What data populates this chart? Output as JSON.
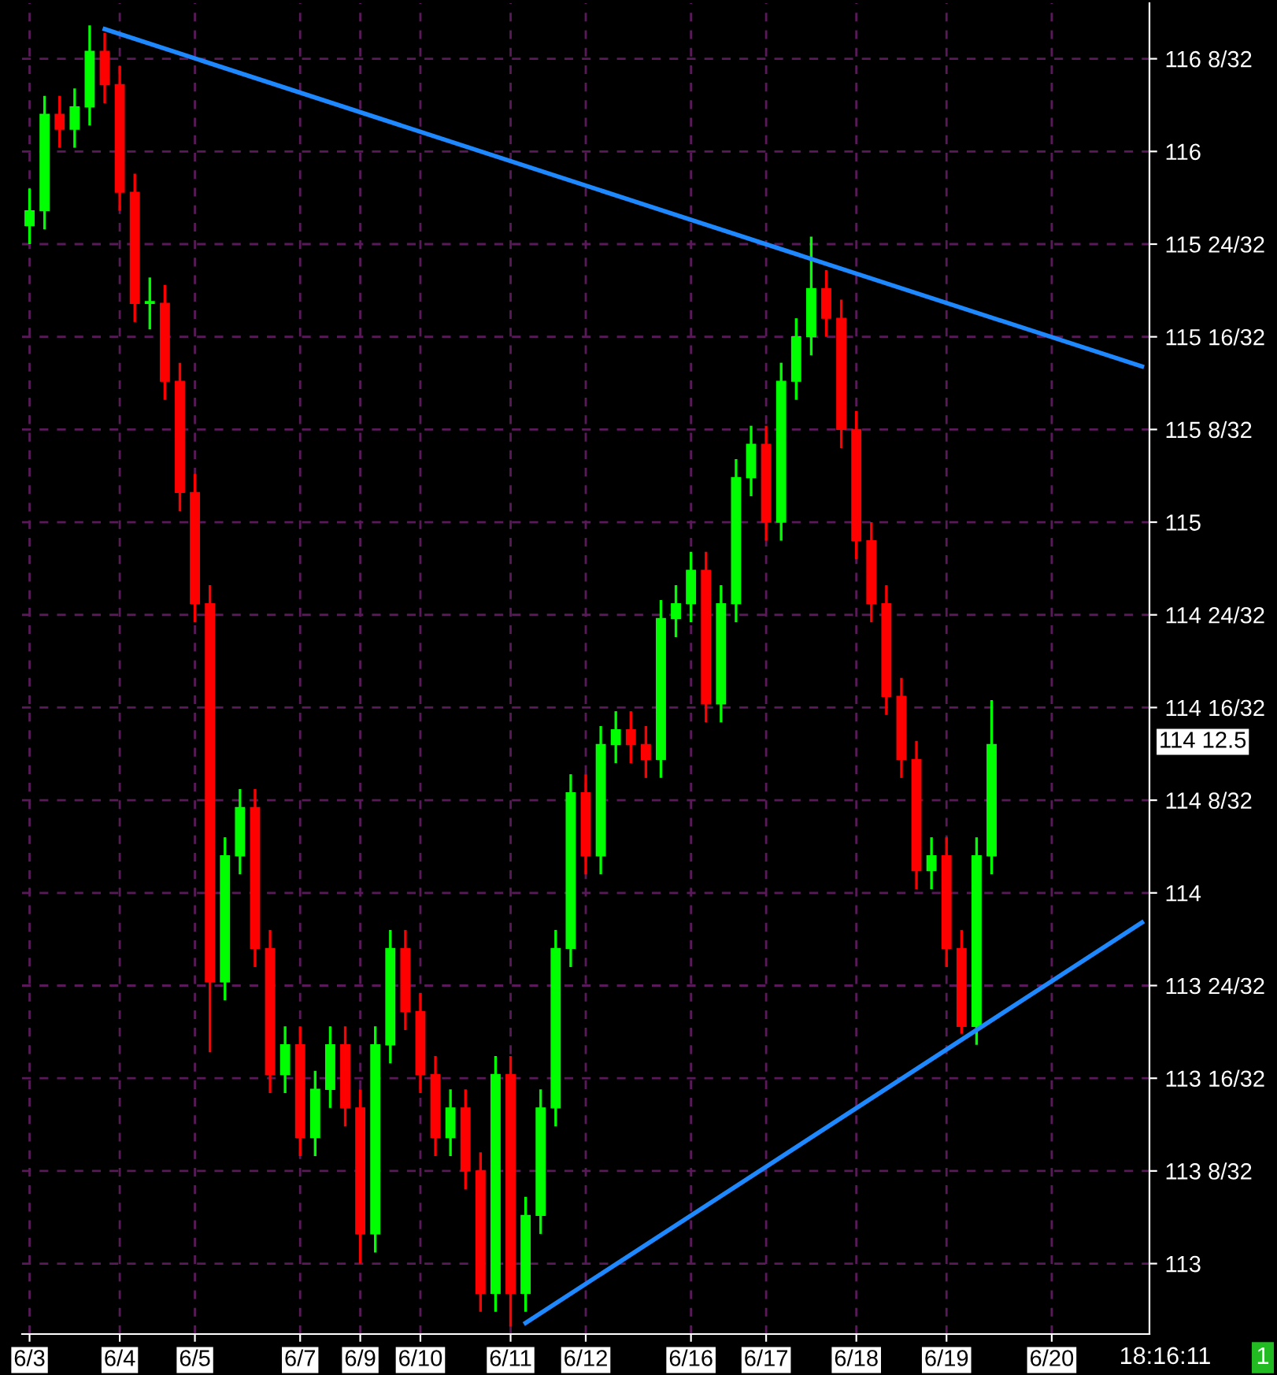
{
  "chart_data": {
    "type": "candlestick",
    "categories": [
      "6/3",
      null,
      null,
      null,
      null,
      null,
      "6/4",
      null,
      null,
      null,
      null,
      "6/5",
      null,
      null,
      null,
      null,
      null,
      null,
      "6/7",
      null,
      null,
      null,
      "6/9",
      null,
      null,
      null,
      "6/10",
      null,
      null,
      null,
      null,
      null,
      "6/11",
      null,
      null,
      null,
      null,
      "6/12",
      null,
      null,
      null,
      null,
      null,
      null,
      "6/16",
      null,
      null,
      null,
      null,
      "6/17",
      null,
      null,
      null,
      null,
      null,
      "6/18",
      null,
      null,
      null,
      null,
      null,
      "6/19",
      null,
      null,
      null,
      null,
      null,
      null,
      "6/20",
      null,
      null,
      null,
      null,
      null,
      null
    ],
    "ohlc": [
      [
        115.8,
        115.9,
        115.75,
        115.84
      ],
      [
        115.84,
        116.15,
        115.79,
        116.1
      ],
      [
        116.1,
        116.15,
        116.01,
        116.06
      ],
      [
        116.06,
        116.17,
        116.01,
        116.12
      ],
      [
        116.12,
        116.34,
        116.07,
        116.27
      ],
      [
        116.27,
        116.32,
        116.13,
        116.18
      ],
      [
        116.18,
        116.23,
        115.84,
        115.89
      ],
      [
        115.89,
        115.94,
        115.54,
        115.59
      ],
      [
        115.59,
        115.66,
        115.52,
        115.59
      ],
      [
        115.59,
        115.64,
        115.33,
        115.38
      ],
      [
        115.38,
        115.43,
        115.03,
        115.08
      ],
      [
        115.08,
        115.13,
        114.73,
        114.78
      ],
      [
        114.78,
        114.83,
        113.57,
        113.76
      ],
      [
        113.76,
        114.15,
        113.71,
        114.1
      ],
      [
        114.1,
        114.28,
        114.05,
        114.23
      ],
      [
        114.23,
        114.28,
        113.8,
        113.85
      ],
      [
        113.85,
        113.9,
        113.46,
        113.51
      ],
      [
        113.51,
        113.64,
        113.46,
        113.59
      ],
      [
        113.59,
        113.64,
        113.29,
        113.34
      ],
      [
        113.34,
        113.52,
        113.29,
        113.47
      ],
      [
        113.47,
        113.64,
        113.42,
        113.59
      ],
      [
        113.59,
        113.64,
        113.37,
        113.42
      ],
      [
        113.42,
        113.47,
        113.0,
        113.08
      ],
      [
        113.08,
        113.64,
        113.03,
        113.59
      ],
      [
        113.59,
        113.9,
        113.54,
        113.85
      ],
      [
        113.85,
        113.9,
        113.63,
        113.68
      ],
      [
        113.68,
        113.73,
        113.46,
        113.51
      ],
      [
        113.51,
        113.56,
        113.29,
        113.34
      ],
      [
        113.34,
        113.47,
        113.29,
        113.42
      ],
      [
        113.42,
        113.47,
        113.2,
        113.25
      ],
      [
        113.25,
        113.3,
        112.87,
        112.92
      ],
      [
        112.92,
        113.56,
        112.87,
        113.51
      ],
      [
        113.51,
        113.56,
        112.83,
        112.92
      ],
      [
        112.92,
        113.18,
        112.87,
        113.13
      ],
      [
        113.13,
        113.47,
        113.08,
        113.42
      ],
      [
        113.42,
        113.9,
        113.37,
        113.85
      ],
      [
        113.85,
        114.32,
        113.8,
        114.27
      ],
      [
        114.27,
        114.32,
        114.05,
        114.1
      ],
      [
        114.1,
        114.45,
        114.05,
        114.4
      ],
      [
        114.4,
        114.49,
        114.35,
        114.44
      ],
      [
        114.44,
        114.49,
        114.35,
        114.4
      ],
      [
        114.4,
        114.45,
        114.31,
        114.36
      ],
      [
        114.36,
        114.79,
        114.31,
        114.74
      ],
      [
        114.74,
        114.83,
        114.69,
        114.78
      ],
      [
        114.78,
        114.92,
        114.73,
        114.87
      ],
      [
        114.87,
        114.92,
        114.46,
        114.51
      ],
      [
        114.51,
        114.83,
        114.46,
        114.78
      ],
      [
        114.78,
        115.17,
        114.73,
        115.12
      ],
      [
        115.12,
        115.26,
        115.07,
        115.21
      ],
      [
        115.21,
        115.26,
        114.95,
        115.0
      ],
      [
        115.0,
        115.43,
        114.95,
        115.38
      ],
      [
        115.38,
        115.55,
        115.33,
        115.5
      ],
      [
        115.5,
        115.77,
        115.45,
        115.63
      ],
      [
        115.63,
        115.68,
        115.5,
        115.55
      ],
      [
        115.55,
        115.6,
        115.2,
        115.25
      ],
      [
        115.25,
        115.3,
        114.9,
        114.95
      ],
      [
        114.95,
        115.0,
        114.73,
        114.78
      ],
      [
        114.78,
        114.83,
        114.48,
        114.53
      ],
      [
        114.53,
        114.58,
        114.31,
        114.36
      ],
      [
        114.36,
        114.41,
        114.01,
        114.06
      ],
      [
        114.06,
        114.15,
        114.01,
        114.1
      ],
      [
        114.1,
        114.15,
        113.8,
        113.85
      ],
      [
        113.85,
        113.9,
        113.62,
        113.64
      ],
      [
        113.64,
        114.15,
        113.59,
        114.1
      ],
      [
        114.1,
        114.52,
        114.05,
        114.4
      ],
      null,
      null,
      null,
      null,
      null,
      null,
      null,
      null,
      null,
      null
    ],
    "colors": [
      "#00ff00",
      "#00ff00",
      "#ff0000",
      "#00ff00",
      "#00ff00",
      "#ff0000",
      "#ff0000",
      "#ff0000",
      "#00ff00",
      "#ff0000",
      "#ff0000",
      "#ff0000",
      "#ff0000",
      "#00ff00",
      "#00ff00",
      "#ff0000",
      "#ff0000",
      "#00ff00",
      "#ff0000",
      "#00ff00",
      "#00ff00",
      "#ff0000",
      "#ff0000",
      "#00ff00",
      "#00ff00",
      "#ff0000",
      "#ff0000",
      "#ff0000",
      "#00ff00",
      "#ff0000",
      "#ff0000",
      "#00ff00",
      "#ff0000",
      "#00ff00",
      "#00ff00",
      "#00ff00",
      "#00ff00",
      "#ff0000",
      "#00ff00",
      "#00ff00",
      "#ff0000",
      "#ff0000",
      "#00ff00",
      "#00ff00",
      "#00ff00",
      "#ff0000",
      "#00ff00",
      "#00ff00",
      "#00ff00",
      "#ff0000",
      "#00ff00",
      "#00ff00",
      "#00ff00",
      "#ff0000",
      "#ff0000",
      "#ff0000",
      "#ff0000",
      "#ff0000",
      "#ff0000",
      "#ff0000",
      "#00ff00",
      "#ff0000",
      "#ff0000",
      "#00ff00",
      "#00ff00",
      null,
      null,
      null,
      null,
      null,
      null,
      null,
      null,
      null,
      null
    ],
    "series": [
      {
        "type": "line",
        "color": "#1e88ff",
        "values": [
          null,
          null,
          null,
          null,
          null,
          116.33,
          null,
          null,
          null,
          null,
          null,
          null,
          null,
          null,
          null,
          null,
          null,
          null,
          null,
          null,
          null,
          null,
          null,
          null,
          null,
          null,
          null,
          null,
          null,
          null,
          null,
          null,
          null,
          null,
          null,
          null,
          null,
          null,
          null,
          null,
          null,
          null,
          null,
          null,
          null,
          null,
          null,
          null,
          null,
          null,
          null,
          null,
          null,
          null,
          null,
          null,
          null,
          null,
          null,
          null,
          null,
          null,
          null,
          null,
          null,
          null,
          null,
          null,
          null,
          null,
          null,
          null,
          null,
          null,
          115.42
        ]
      },
      {
        "type": "line",
        "color": "#1e88ff",
        "values": [
          null,
          null,
          null,
          null,
          null,
          null,
          null,
          null,
          null,
          null,
          null,
          null,
          null,
          null,
          null,
          null,
          null,
          null,
          null,
          null,
          null,
          null,
          null,
          null,
          null,
          null,
          null,
          null,
          null,
          null,
          null,
          null,
          null,
          112.84,
          null,
          null,
          null,
          null,
          null,
          null,
          null,
          null,
          null,
          null,
          null,
          null,
          null,
          null,
          null,
          null,
          null,
          null,
          null,
          null,
          null,
          null,
          null,
          null,
          null,
          null,
          null,
          null,
          null,
          null,
          null,
          null,
          null,
          null,
          null,
          null,
          null,
          null,
          null,
          null,
          113.92
        ]
      }
    ],
    "ylim": [
      112.81,
      116.4
    ],
    "yticks": [
      113,
      {
        "value": 113.25,
        "label": "113 8/32"
      },
      {
        "value": 113.5,
        "label": "113 16/32"
      },
      {
        "value": 113.75,
        "label": "113 24/32"
      },
      114,
      {
        "value": 114.25,
        "label": "114 8/32"
      },
      {
        "value": 114.5,
        "label": "114 16/32"
      },
      {
        "value": 114.75,
        "label": "114 24/32"
      },
      115,
      {
        "value": 115.25,
        "label": "115 8/32"
      },
      {
        "value": 115.5,
        "label": "115 16/32"
      },
      {
        "value": 115.75,
        "label": "115 24/32"
      },
      116,
      {
        "value": 116.25,
        "label": "116 8/32"
      }
    ],
    "grid": true,
    "annotations": [
      "114 12.5",
      "18:16:11",
      "1"
    ]
  }
}
